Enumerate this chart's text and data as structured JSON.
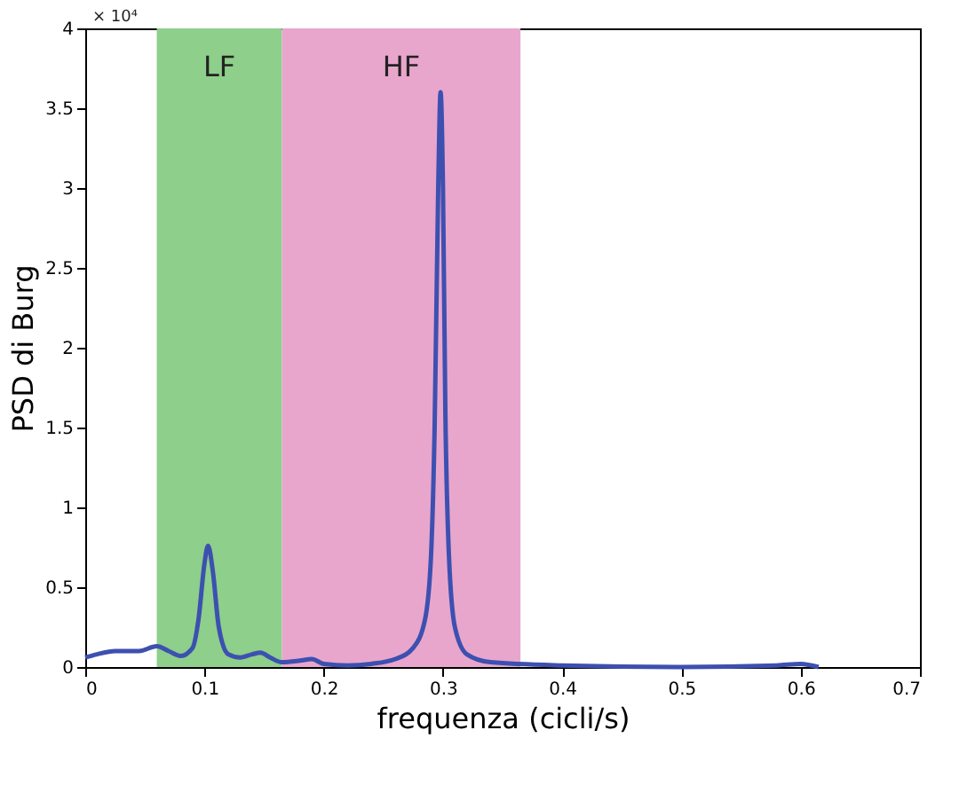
{
  "chart_data": {
    "type": "line",
    "xlabel": "frequenza (cicli/s)",
    "ylabel": "PSD di Burg",
    "annotations": [
      "× 10⁴"
    ],
    "x": [
      0,
      0.01,
      0.025,
      0.045,
      0.06,
      0.07,
      0.08,
      0.09,
      0.095,
      0.1,
      0.103,
      0.107,
      0.112,
      0.12,
      0.13,
      0.14,
      0.147,
      0.155,
      0.165,
      0.18,
      0.19,
      0.2,
      0.22,
      0.24,
      0.26,
      0.275,
      0.285,
      0.29,
      0.293,
      0.296,
      0.298,
      0.3,
      0.302,
      0.305,
      0.31,
      0.32,
      0.34,
      0.4,
      0.5,
      0.58,
      0.6,
      0.615
    ],
    "series": [
      {
        "color": "#3d50b0",
        "values": [
          0.06,
          0.08,
          0.1,
          0.1,
          0.13,
          0.1,
          0.07,
          0.12,
          0.3,
          0.65,
          0.76,
          0.6,
          0.25,
          0.08,
          0.06,
          0.08,
          0.09,
          0.06,
          0.03,
          0.04,
          0.05,
          0.02,
          0.01,
          0.02,
          0.05,
          0.12,
          0.3,
          0.7,
          1.5,
          3.0,
          3.6,
          3.0,
          1.6,
          0.7,
          0.25,
          0.08,
          0.03,
          0.01,
          0.0,
          0.01,
          0.02,
          0.0
        ]
      }
    ],
    "xlim": [
      0,
      0.7
    ],
    "xticks": [
      0,
      0.1,
      0.2,
      0.3,
      0.4,
      0.5,
      0.6,
      0.7
    ],
    "ylim": [
      0,
      4
    ],
    "yticks": [
      0,
      0.5,
      1,
      1.5,
      2,
      2.5,
      3,
      3.5,
      4
    ],
    "bands": [
      {
        "axis": "x",
        "from": 0.06,
        "to": 0.165,
        "label": "LF",
        "color": "#8dcf8b"
      },
      {
        "axis": "x",
        "from": 0.165,
        "to": 0.365,
        "label": "HF",
        "color": "#e8a6cd"
      }
    ],
    "grid": false,
    "marker": "none",
    "line_style": "solid"
  }
}
